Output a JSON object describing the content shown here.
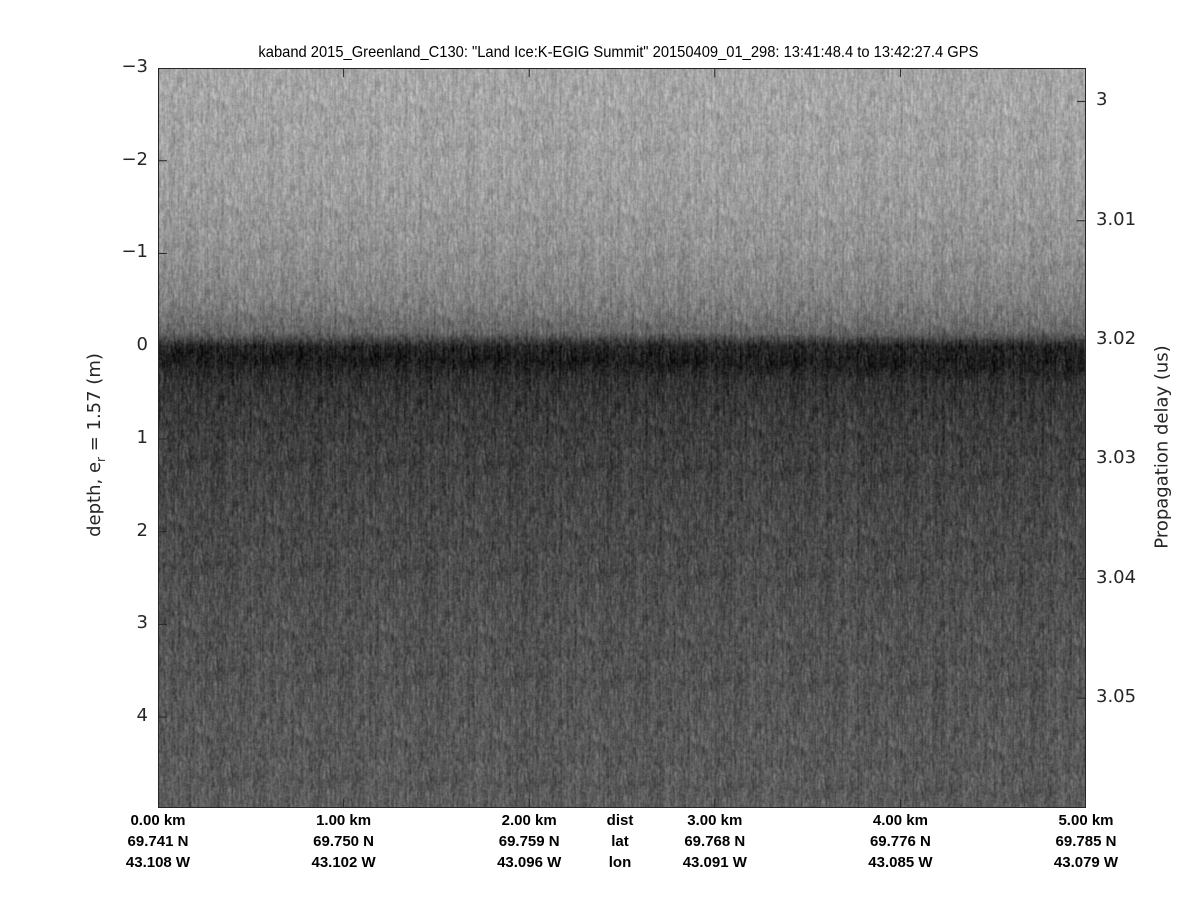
{
  "chart_data": {
    "type": "heatmap",
    "title": "kaband 2015_Greenland_C130: \"Land Ice:K-EGIG Summit\"  20150409_01_298: 13:41:48.4 to 13:42:27.4 GPS",
    "ylabel_left": {
      "text": "depth, e",
      "subscript": "r",
      "suffix": " = 1.57 (m)"
    },
    "ylabel_right": "Propagation delay (us)",
    "ylim_left": [
      -3,
      4.98
    ],
    "ylim_right": [
      2.9972,
      3.0592
    ],
    "yticks_left": [
      "-3",
      "-2",
      "-1",
      "0",
      "1",
      "2",
      "3",
      "4"
    ],
    "yticks_right": [
      "3",
      "3.01",
      "3.02",
      "3.03",
      "3.04",
      "3.05"
    ],
    "xlim_km": [
      0,
      5
    ],
    "xticks": [
      {
        "dist": "0.00 km",
        "lat": "69.741 N",
        "lon": "43.108 W"
      },
      {
        "dist": "1.00 km",
        "lat": "69.750 N",
        "lon": "43.102 W"
      },
      {
        "dist": "2.00 km",
        "lat": "69.759 N",
        "lon": "43.096 W"
      },
      {
        "dist": "3.00 km",
        "lat": "69.768 N",
        "lon": "43.091 W"
      },
      {
        "dist": "4.00 km",
        "lat": "69.776 N",
        "lon": "43.085 W"
      },
      {
        "dist": "5.00 km",
        "lat": "69.785 N",
        "lon": "43.079 W"
      }
    ],
    "row_labels": {
      "dist": "dist",
      "lat": "lat",
      "lon": "lon"
    },
    "colormap": "gray",
    "grid": false,
    "mean_intensity_profile": {
      "depth_m": [
        -3,
        -2,
        -1,
        -0.5,
        -0.15,
        0,
        0.15,
        0.4,
        1,
        2,
        3,
        4,
        5
      ],
      "intensity": [
        0.65,
        0.63,
        0.57,
        0.5,
        0.4,
        0.14,
        0.12,
        0.2,
        0.25,
        0.29,
        0.32,
        0.34,
        0.36
      ]
    }
  }
}
